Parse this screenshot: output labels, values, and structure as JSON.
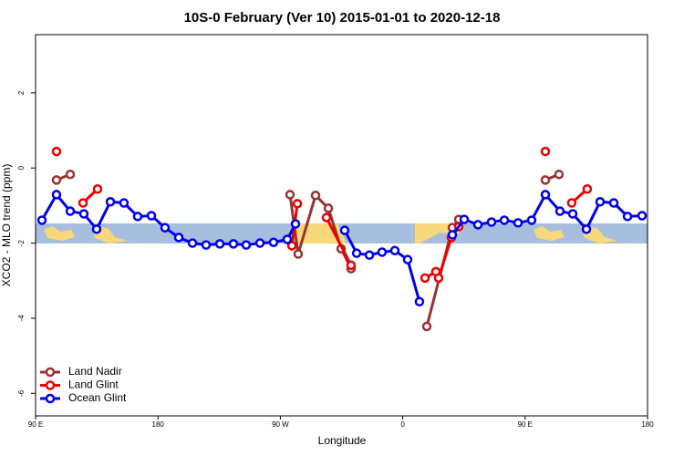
{
  "chart_data": {
    "type": "line",
    "title": "10S-0 February (Ver 10)   2015-01-01 to 2020-12-18",
    "x_label": "Longitude",
    "y_label": "XCO2 - MLO trend (ppm)",
    "xlim": [
      90,
      540
    ],
    "ylim": [
      -6.6,
      3.55
    ],
    "xticks": [
      {
        "value": 90,
        "label": "90 E"
      },
      {
        "value": 180,
        "label": "180"
      },
      {
        "value": 270,
        "label": "90 W"
      },
      {
        "value": 360,
        "label": "0"
      },
      {
        "value": 450,
        "label": "90 E"
      },
      {
        "value": 540,
        "label": "180"
      }
    ],
    "yticks": [
      2,
      0,
      -2,
      -4,
      -6
    ],
    "legend_position": "bottom-left",
    "series": [
      {
        "name": "Land Nadir",
        "color": "#993333",
        "x": [
          105.4,
          115.5,
          null,
          277.1,
          283.1,
          295.9,
          305.3,
          314.7,
          322,
          null,
          377.7,
          396.5,
          401.2,
          null,
          464.9,
          474.9
        ],
        "values": [
          -0.32,
          -0.17,
          null,
          -0.71,
          -2.29,
          -0.73,
          -1.07,
          -2.15,
          -2.68,
          null,
          -4.22,
          -1.59,
          -1.37,
          null,
          -0.32,
          -0.17
        ]
      },
      {
        "name": "Land Glint",
        "color": "#ee0000",
        "x": [
          105.4,
          null,
          124.9,
          135.6,
          null,
          278.5,
          282.5,
          null,
          303.9,
          322,
          null,
          376.4,
          384.4,
          386.4,
          395.8,
          401.2,
          null,
          464.9,
          null,
          484.3,
          495.7
        ],
        "values": [
          0.44,
          null,
          -0.93,
          -0.56,
          null,
          -2.07,
          -0.95,
          null,
          -1.32,
          -2.59,
          null,
          -2.93,
          -2.76,
          -2.93,
          -1.85,
          -1.56,
          null,
          0.44,
          null,
          -0.93,
          -0.56
        ]
      },
      {
        "name": "Ocean Glint",
        "color": "#0000ee",
        "x": [
          94.7,
          105.4,
          115.5,
          125.5,
          134.9,
          145,
          155,
          165.1,
          175.2,
          185.2,
          195.3,
          205.4,
          215.4,
          225.5,
          235.5,
          244.9,
          255,
          265,
          275.1,
          281.1,
          null,
          317.3,
          326.1,
          335.5,
          344.8,
          354.2,
          363.6,
          372.3,
          null,
          396.5,
          405.2,
          415.3,
          425.3,
          434.7,
          444.8,
          454.8,
          464.9,
          475.6,
          485,
          495.1,
          505.1,
          515.2,
          525.3,
          536
        ],
        "values": [
          -1.39,
          -0.71,
          -1.15,
          -1.22,
          -1.63,
          -0.9,
          -0.93,
          -1.29,
          -1.27,
          -1.59,
          -1.85,
          -2.0,
          -2.05,
          -2.02,
          -2.02,
          -2.05,
          -2.0,
          -1.98,
          -1.9,
          -1.49,
          null,
          -1.66,
          -2.27,
          -2.32,
          -2.24,
          -2.2,
          -2.44,
          -3.56,
          null,
          -1.78,
          -1.37,
          -1.51,
          -1.44,
          -1.39,
          -1.46,
          -1.39,
          -0.71,
          -1.15,
          -1.22,
          -1.63,
          -0.9,
          -0.93,
          -1.29,
          -1.27
        ]
      }
    ]
  }
}
